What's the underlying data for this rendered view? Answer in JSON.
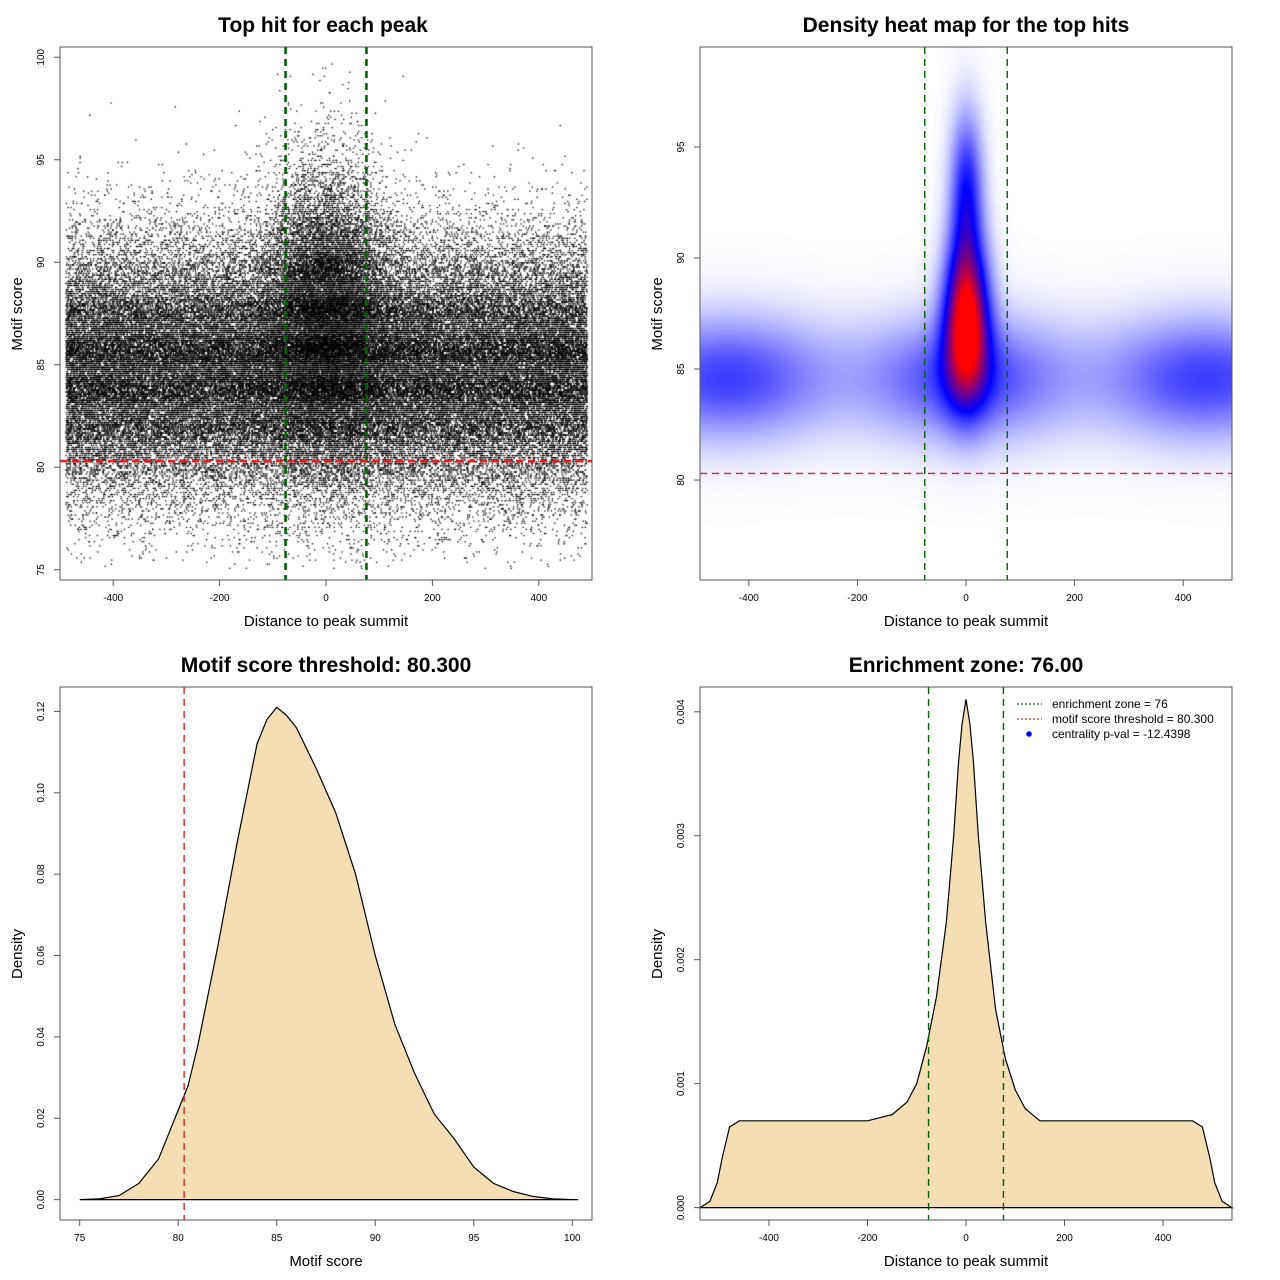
{
  "chart_data": [
    {
      "type": "scatter",
      "title": "Top hit for each peak",
      "xlabel": "Distance to peak summit",
      "ylabel": "Motif score",
      "xlim": [
        -500,
        500
      ],
      "ylim": [
        74.5,
        100.5
      ],
      "xticks": [
        -400,
        -200,
        0,
        200,
        400
      ],
      "yticks": [
        75,
        80,
        85,
        90,
        95,
        100
      ],
      "point_color": "#000000",
      "approx_point_count": 90000,
      "distribution": {
        "x_range": [
          -490,
          490
        ],
        "background_score_mean": 84.8,
        "background_score_sd": 3.1,
        "central_score_mean": 87.5,
        "central_score_sd": 3.5,
        "central_width": 60
      },
      "vlines": [
        {
          "x": -76,
          "color": "#006400",
          "style": "dashed"
        },
        {
          "x": 76,
          "color": "#006400",
          "style": "dashed"
        }
      ],
      "hlines": [
        {
          "y": 80.3,
          "color": "#dd2222",
          "style": "dashed"
        }
      ]
    },
    {
      "type": "heatmap",
      "title": "Density heat map for the top hits",
      "xlabel": "Distance to peak summit",
      "ylabel": "Motif score",
      "xlim": [
        -490,
        490
      ],
      "ylim": [
        75.5,
        99.5
      ],
      "xticks": [
        -400,
        -200,
        0,
        200,
        400
      ],
      "yticks": [
        80,
        85,
        90,
        95
      ],
      "colormap": [
        "#ffffff",
        "#0000ff",
        "#ff0000"
      ],
      "peak": {
        "x": 0,
        "y": 87.3
      },
      "vlines": [
        {
          "x": -76,
          "color": "#006400",
          "style": "dashed"
        },
        {
          "x": 76,
          "color": "#006400",
          "style": "dashed"
        }
      ],
      "hlines": [
        {
          "y": 80.3,
          "color": "#dd2222",
          "style": "dashed"
        }
      ]
    },
    {
      "type": "area",
      "title": "Motif score threshold: 80.300",
      "xlabel": "Motif score",
      "ylabel": "Density",
      "xlim": [
        74,
        101
      ],
      "ylim": [
        -0.005,
        0.126
      ],
      "xticks": [
        75,
        80,
        85,
        90,
        95,
        100
      ],
      "yticks": [
        0.0,
        0.02,
        0.04,
        0.06,
        0.08,
        0.1,
        0.12
      ],
      "ytick_labels": [
        "0.00",
        "0.02",
        "0.04",
        "0.06",
        "0.08",
        "0.10",
        "0.12"
      ],
      "fill_color": "#f5deb3",
      "x": [
        75,
        76,
        77,
        78,
        79,
        80,
        80.5,
        81,
        82,
        83,
        84,
        84.5,
        85,
        85.5,
        86,
        87,
        88,
        89,
        90,
        91,
        92,
        93,
        94,
        95,
        96,
        97,
        98,
        99,
        100,
        100.3
      ],
      "y": [
        0.0,
        0.0002,
        0.001,
        0.004,
        0.01,
        0.022,
        0.028,
        0.038,
        0.062,
        0.088,
        0.112,
        0.118,
        0.121,
        0.119,
        0.116,
        0.106,
        0.095,
        0.08,
        0.06,
        0.043,
        0.031,
        0.021,
        0.015,
        0.008,
        0.004,
        0.002,
        0.0008,
        0.0002,
        0.0,
        0.0
      ],
      "vlines": [
        {
          "x": 80.3,
          "color": "#dd2222",
          "style": "dashed"
        }
      ]
    },
    {
      "type": "area",
      "title": "Enrichment zone: 76.00",
      "xlabel": "Distance to peak summit",
      "ylabel": "Density",
      "xlim": [
        -540,
        540
      ],
      "ylim": [
        -0.0001,
        0.0042
      ],
      "xticks": [
        -400,
        -200,
        0,
        200,
        400
      ],
      "yticks": [
        0.0,
        0.001,
        0.002,
        0.003,
        0.004
      ],
      "ytick_labels": [
        "0.000",
        "0.001",
        "0.002",
        "0.003",
        "0.004"
      ],
      "fill_color": "#f5deb3",
      "x": [
        -540,
        -520,
        -505,
        -495,
        -480,
        -460,
        -400,
        -300,
        -200,
        -150,
        -120,
        -100,
        -80,
        -60,
        -40,
        -25,
        -15,
        -8,
        0,
        8,
        15,
        25,
        40,
        60,
        80,
        100,
        120,
        150,
        200,
        300,
        400,
        460,
        480,
        495,
        505,
        520,
        540
      ],
      "y": [
        0.0,
        5e-05,
        0.0002,
        0.0004,
        0.00065,
        0.0007,
        0.0007,
        0.0007,
        0.0007,
        0.00075,
        0.00085,
        0.001,
        0.0013,
        0.0017,
        0.0023,
        0.003,
        0.0036,
        0.0039,
        0.0041,
        0.0039,
        0.0036,
        0.003,
        0.0023,
        0.0016,
        0.0012,
        0.00095,
        0.0008,
        0.0007,
        0.0007,
        0.0007,
        0.0007,
        0.0007,
        0.00065,
        0.0004,
        0.0002,
        5e-05,
        0.0
      ],
      "vlines": [
        {
          "x": -76,
          "color": "#006400",
          "style": "dashed"
        },
        {
          "x": 76,
          "color": "#006400",
          "style": "dashed"
        }
      ],
      "legend": {
        "placement": "top-right",
        "entries": [
          {
            "label": "enrichment zone = 76",
            "color": "#006400",
            "style": "dotted-line"
          },
          {
            "label": "motif score threshold = 80.300",
            "color": "#dd2222",
            "style": "dotted-line"
          },
          {
            "label": "centrality p-val = -12.4398",
            "color": "#0000ff",
            "style": "point"
          }
        ]
      }
    }
  ]
}
